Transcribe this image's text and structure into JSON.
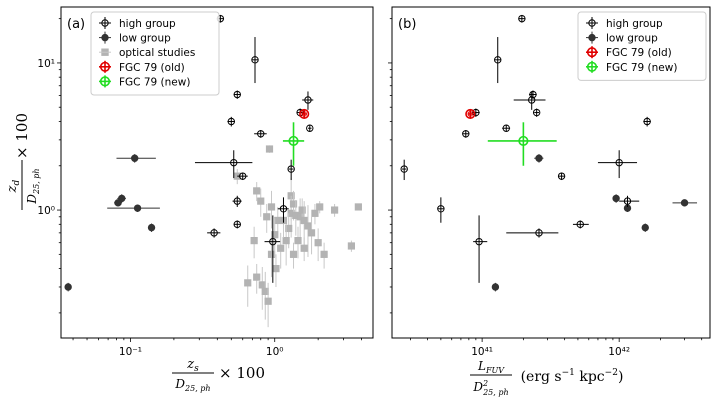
{
  "chart_data": [
    {
      "type": "scatter",
      "panel_label": "(a)",
      "xscale": "log",
      "yscale": "log",
      "xlim": [
        0.033,
        4.8
      ],
      "ylim": [
        0.135,
        24
      ],
      "xticks": [
        {
          "value": 0.1,
          "label": "10⁻¹"
        },
        {
          "value": 1,
          "label": "10⁰"
        }
      ],
      "yticks": [
        {
          "value": 1,
          "label": "10⁰"
        },
        {
          "value": 10,
          "label": "10¹"
        }
      ],
      "xlabel": {
        "frac_num": "z_s",
        "frac_den": "D_25,ph",
        "suffix": "× 100"
      },
      "ylabel": {
        "frac_num": "z_d",
        "frac_den": "D_25,ph",
        "suffix": "× 100"
      },
      "legend": {
        "location": "upper left",
        "entries": [
          {
            "label": "high group",
            "marker": "open-circle",
            "color": "#000000"
          },
          {
            "label": "low group",
            "marker": "filled-circle",
            "color": "#333333"
          },
          {
            "label": "optical studies",
            "marker": "square",
            "color": "#aaaaaa"
          },
          {
            "label": "FGC 79 (old)",
            "marker": "open-circle",
            "color": "#e00000"
          },
          {
            "label": "FGC 79 (new)",
            "marker": "open-circle",
            "color": "#22dd22"
          }
        ]
      },
      "series": [
        {
          "name": "high group",
          "points": [
            {
              "x": 0.42,
              "y": 20,
              "xerr": 0.02,
              "yerr": 1.2
            },
            {
              "x": 0.73,
              "y": 10.5,
              "xerr": 0.04,
              "yerr": [
                3.2,
                4.5
              ]
            },
            {
              "x": 0.55,
              "y": 6.1,
              "xerr": 0.03,
              "yerr": 0.4
            },
            {
              "x": 1.7,
              "y": 5.6,
              "xerr": 0.15,
              "yerr": 0.8
            },
            {
              "x": 0.5,
              "y": 4.0,
              "xerr": 0.03,
              "yerr": 0.3
            },
            {
              "x": 1.5,
              "y": 4.6,
              "xerr": 0.08,
              "yerr": 0.3
            },
            {
              "x": 1.75,
              "y": 3.6,
              "xerr": 0.05,
              "yerr": 0.2
            },
            {
              "x": 0.8,
              "y": 3.3,
              "xerr": 0.08,
              "yerr": 0.2
            },
            {
              "x": 0.52,
              "y": 2.1,
              "xerr": [
                0.24,
                0.18
              ],
              "yerr": [
                0.45,
                0.45
              ]
            },
            {
              "x": 1.3,
              "y": 1.9,
              "xerr": 0.05,
              "yerr": 0.3
            },
            {
              "x": 0.6,
              "y": 1.7,
              "xerr": 0.05,
              "yerr": 0.1
            },
            {
              "x": 0.55,
              "y": 1.15,
              "xerr": 0.04,
              "yerr": 0.1
            },
            {
              "x": 1.15,
              "y": 1.02,
              "xerr": 0.1,
              "yerr": 0.2
            },
            {
              "x": 0.55,
              "y": 0.8,
              "xerr": 0.03,
              "yerr": 0.05
            },
            {
              "x": 0.38,
              "y": 0.7,
              "xerr": 0.04,
              "yerr": 0.05
            },
            {
              "x": 0.97,
              "y": 0.61,
              "xerr": 0.12,
              "yerr": [
                0.29,
                0.31
              ]
            }
          ]
        },
        {
          "name": "low group",
          "points": [
            {
              "x": 0.107,
              "y": 2.25,
              "xerr": [
                0.027,
                0.043
              ],
              "yerr": 0.15
            },
            {
              "x": 0.087,
              "y": 1.2,
              "xerr": 0.006,
              "yerr": 0.08
            },
            {
              "x": 0.082,
              "y": 1.12,
              "xerr": 0.005,
              "yerr": 0.06
            },
            {
              "x": 0.112,
              "y": 1.03,
              "xerr": [
                0.043,
                0.048
              ],
              "yerr": 0.06
            },
            {
              "x": 0.14,
              "y": 0.76,
              "xerr": 0.006,
              "yerr": 0.05
            },
            {
              "x": 0.037,
              "y": 0.3,
              "xerr": 0.002,
              "yerr": 0.02
            }
          ]
        },
        {
          "name": "optical studies",
          "points": [
            {
              "x": 0.92,
              "y": 2.6,
              "yerr": 0.15
            },
            {
              "x": 0.55,
              "y": 1.7,
              "yerr": 0.2
            },
            {
              "x": 0.75,
              "y": 1.35,
              "yerr": 0.2
            },
            {
              "x": 0.8,
              "y": 1.15,
              "yerr": 0.25
            },
            {
              "x": 0.95,
              "y": 1.05,
              "yerr": 0.3
            },
            {
              "x": 1.05,
              "y": 0.85,
              "yerr": 0.2
            },
            {
              "x": 1.3,
              "y": 1.25,
              "yerr": 0.4
            },
            {
              "x": 1.3,
              "y": 0.95,
              "yerr": 0.3
            },
            {
              "x": 1.35,
              "y": 1.1,
              "yerr": 0.25
            },
            {
              "x": 1.4,
              "y": 0.92,
              "yerr": 0.25
            },
            {
              "x": 1.5,
              "y": 0.9,
              "yerr": 0.3
            },
            {
              "x": 1.55,
              "y": 1.0,
              "yerr": 0.2
            },
            {
              "x": 1.6,
              "y": 0.85,
              "yerr": 0.3
            },
            {
              "x": 1.7,
              "y": 0.78,
              "yerr": 0.3
            },
            {
              "x": 1.8,
              "y": 0.7,
              "yerr": 0.2
            },
            {
              "x": 1.9,
              "y": 0.95,
              "yerr": 0.15
            },
            {
              "x": 2.0,
              "y": 0.6,
              "yerr": 0.15
            },
            {
              "x": 2.05,
              "y": 1.05,
              "yerr": 0.1
            },
            {
              "x": 2.2,
              "y": 0.5,
              "yerr": 0.1
            },
            {
              "x": 2.6,
              "y": 1.0,
              "yerr": 0.1
            },
            {
              "x": 3.4,
              "y": 0.57,
              "yerr": 0.05
            },
            {
              "x": 3.8,
              "y": 1.05,
              "yerr": 0.05
            },
            {
              "x": 0.75,
              "y": 0.35,
              "yerr": 0.08
            },
            {
              "x": 0.82,
              "y": 0.31,
              "yerr": 0.1
            },
            {
              "x": 0.86,
              "y": 0.28,
              "yerr": 0.1
            },
            {
              "x": 0.9,
              "y": 0.24,
              "yerr": 0.08
            },
            {
              "x": 1.02,
              "y": 0.4,
              "yerr": 0.1
            },
            {
              "x": 0.95,
              "y": 0.5,
              "yerr": 0.15
            },
            {
              "x": 1.1,
              "y": 0.55,
              "yerr": 0.15
            },
            {
              "x": 1.25,
              "y": 0.75,
              "yerr": 0.2
            },
            {
              "x": 0.72,
              "y": 0.62,
              "yerr": 0.15
            },
            {
              "x": 1.0,
              "y": 0.68,
              "yerr": 0.2
            },
            {
              "x": 1.2,
              "y": 0.62,
              "yerr": 0.2
            },
            {
              "x": 0.65,
              "y": 0.32,
              "yerr": 0.1
            },
            {
              "x": 1.15,
              "y": 0.85,
              "yerr": 0.2
            },
            {
              "x": 1.45,
              "y": 0.62,
              "yerr": 0.15
            },
            {
              "x": 0.88,
              "y": 0.9,
              "yerr": 0.2
            },
            {
              "x": 1.6,
              "y": 0.55,
              "yerr": 0.1
            },
            {
              "x": 1.35,
              "y": 0.5,
              "yerr": 0.1
            }
          ]
        },
        {
          "name": "FGC 79 (old)",
          "points": [
            {
              "x": 1.6,
              "y": 4.5,
              "xerr": 0.06,
              "yerr": 0.25
            }
          ]
        },
        {
          "name": "FGC 79 (new)",
          "points": [
            {
              "x": 1.35,
              "y": 2.95,
              "xerr": [
                0.21,
                0.25
              ],
              "yerr": [
                0.95,
                1.0
              ]
            }
          ]
        }
      ]
    },
    {
      "type": "scatter",
      "panel_label": "(b)",
      "xscale": "log",
      "yscale": "log",
      "xlim": [
        2.2e+40,
        4.6e+42
      ],
      "ylim": [
        0.135,
        24
      ],
      "xticks": [
        {
          "value": 1e+41,
          "label": "10⁴¹"
        },
        {
          "value": 1e+42,
          "label": "10⁴²"
        }
      ],
      "yticks": [],
      "xlabel": {
        "frac_num": "L_FUV",
        "frac_den": "D²_25,ph",
        "suffix": "(erg s⁻¹ kpc⁻²)"
      },
      "legend": {
        "location": "upper right",
        "entries": [
          {
            "label": "high group",
            "marker": "open-circle",
            "color": "#000000"
          },
          {
            "label": "low group",
            "marker": "filled-circle",
            "color": "#333333"
          },
          {
            "label": "FGC 79 (old)",
            "marker": "open-circle",
            "color": "#e00000"
          },
          {
            "label": "FGC 79 (new)",
            "marker": "open-circle",
            "color": "#22dd22"
          }
        ]
      },
      "series": [
        {
          "name": "high group",
          "points": [
            {
              "x": 1.95e+41,
              "y": 20,
              "xerr": 1e+40,
              "yerr": 1.2
            },
            {
              "x": 1.3e+41,
              "y": 10.5,
              "xerr": 7e+39,
              "yerr": [
                3.2,
                4.5
              ]
            },
            {
              "x": 2.35e+41,
              "y": 6.1,
              "xerr": 1.5e+40,
              "yerr": 0.4
            },
            {
              "x": 2.3e+41,
              "y": 5.6,
              "xerr": 6e+40,
              "yerr": 0.8
            },
            {
              "x": 9e+40,
              "y": 4.6,
              "xerr": 6e+39,
              "yerr": 0.3
            },
            {
              "x": 2.5e+41,
              "y": 4.6,
              "xerr": 1e+40,
              "yerr": 0.3
            },
            {
              "x": 1.6e+42,
              "y": 4.0,
              "xerr": 1e+41,
              "yerr": 0.3
            },
            {
              "x": 1.5e+41,
              "y": 3.6,
              "xerr": 1e+40,
              "yerr": 0.2
            },
            {
              "x": 7.6e+40,
              "y": 3.3,
              "xerr": 4e+39,
              "yerr": 0.2
            },
            {
              "x": 1e+42,
              "y": 2.1,
              "xerr": [
                3e+41,
                3.5e+41
              ],
              "yerr": [
                0.45,
                0.45
              ]
            },
            {
              "x": 2.7e+40,
              "y": 1.9,
              "xerr": 1e+39,
              "yerr": 0.3
            },
            {
              "x": 3.8e+41,
              "y": 1.7,
              "xerr": 2e+40,
              "yerr": 0.1
            },
            {
              "x": 1.15e+42,
              "y": 1.15,
              "xerr": [
                1.5e+41,
                2.5e+41
              ],
              "yerr": 0.1
            },
            {
              "x": 5e+40,
              "y": 1.02,
              "xerr": 2.5e+39,
              "yerr": 0.2
            },
            {
              "x": 5.2e+41,
              "y": 0.8,
              "xerr": [
                6e+40,
                8e+40
              ],
              "yerr": 0.05
            },
            {
              "x": 2.6e+41,
              "y": 0.7,
              "xerr": [
                1.1e+41,
                1e+41
              ],
              "yerr": 0.05
            },
            {
              "x": 9.5e+40,
              "y": 0.61,
              "xerr": [
                9e+39,
                1.4e+40
              ],
              "yerr": [
                0.29,
                0.31
              ]
            }
          ]
        },
        {
          "name": "low group",
          "points": [
            {
              "x": 2.6e+41,
              "y": 2.25,
              "xerr": 2e+40,
              "yerr": 0.15
            },
            {
              "x": 9.5e+41,
              "y": 1.2,
              "xerr": 5e+39,
              "yerr": 0.08
            },
            {
              "x": 1.15e+42,
              "y": 1.03,
              "xerr": 5e+40,
              "yerr": 0.06
            },
            {
              "x": 3e+42,
              "y": 1.12,
              "xerr": [
                5.5e+41,
                7e+41
              ],
              "yerr": 0.06
            },
            {
              "x": 1.55e+42,
              "y": 0.76,
              "xerr": 8e+40,
              "yerr": 0.05
            },
            {
              "x": 1.25e+41,
              "y": 0.3,
              "xerr": 5e+39,
              "yerr": 0.02
            }
          ]
        },
        {
          "name": "FGC 79 (old)",
          "points": [
            {
              "x": 8.2e+40,
              "y": 4.5,
              "xerr": 3e+39,
              "yerr": 0.25
            }
          ]
        },
        {
          "name": "FGC 79 (new)",
          "points": [
            {
              "x": 2e+41,
              "y": 2.95,
              "xerr": [
                9e+40,
                1.5e+41
              ],
              "yerr": [
                0.95,
                1.0
              ]
            }
          ]
        }
      ]
    }
  ]
}
